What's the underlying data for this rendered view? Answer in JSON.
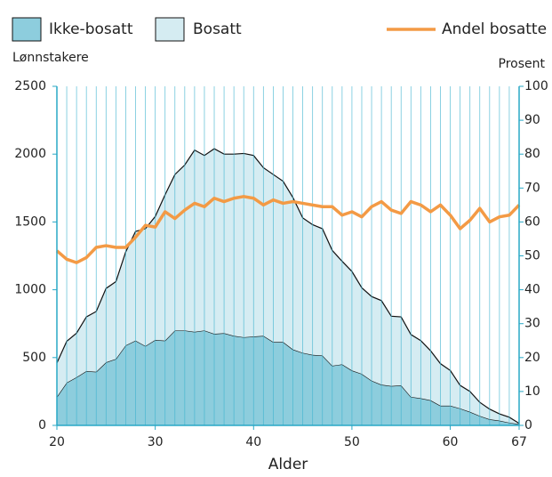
{
  "chart_data": {
    "type": "area",
    "y_label": "Lønnstakere",
    "y2_label": "Prosent",
    "x_label": "Alder",
    "x": [
      20,
      21,
      22,
      23,
      24,
      25,
      26,
      27,
      28,
      29,
      30,
      31,
      32,
      33,
      34,
      35,
      36,
      37,
      38,
      39,
      40,
      41,
      42,
      43,
      44,
      45,
      46,
      47,
      48,
      49,
      50,
      51,
      52,
      53,
      54,
      55,
      56,
      57,
      58,
      59,
      60,
      61,
      62,
      63,
      64,
      65,
      66,
      67
    ],
    "xlim": [
      20,
      67
    ],
    "xticks": [
      20,
      30,
      40,
      50,
      60,
      67
    ],
    "ylim": [
      0,
      2500
    ],
    "yticks": [
      0,
      500,
      1000,
      1500,
      2000,
      2500
    ],
    "y2lim": [
      0,
      100
    ],
    "y2ticks": [
      0,
      10,
      20,
      30,
      40,
      50,
      60,
      70,
      80,
      90,
      100
    ],
    "vertical_grid": true,
    "series": [
      {
        "name": "Ikke-bosatt",
        "color": "#8dcddd",
        "stacked": true,
        "values": [
          210,
          315,
          355,
          400,
          395,
          465,
          490,
          590,
          625,
          585,
          630,
          625,
          700,
          700,
          690,
          700,
          675,
          680,
          660,
          650,
          655,
          660,
          615,
          615,
          560,
          535,
          520,
          515,
          440,
          450,
          405,
          380,
          330,
          300,
          290,
          295,
          210,
          200,
          185,
          145,
          145,
          125,
          100,
          70,
          45,
          35,
          20,
          10
        ]
      },
      {
        "name": "Bosatt",
        "color": "#d5ecf2",
        "stacked": true,
        "values": [
          250,
          305,
          325,
          400,
          445,
          545,
          570,
          690,
          805,
          865,
          910,
          1075,
          1150,
          1220,
          1340,
          1290,
          1365,
          1320,
          1340,
          1355,
          1335,
          1240,
          1235,
          1185,
          1120,
          995,
          960,
          935,
          850,
          760,
          730,
          635,
          620,
          620,
          515,
          505,
          460,
          425,
          365,
          310,
          260,
          170,
          150,
          100,
          75,
          50,
          40,
          5
        ]
      },
      {
        "name": "Andel bosatte",
        "color": "#f39a45",
        "axis": "y2",
        "values": [
          51.5,
          49,
          48,
          49.5,
          52.5,
          53,
          52.5,
          52.5,
          55.5,
          59,
          58.5,
          63,
          61,
          63.5,
          65.5,
          64.5,
          67,
          66,
          67,
          67.5,
          67,
          65,
          66.5,
          65.5,
          66,
          65.5,
          65,
          64.5,
          64.5,
          62,
          63,
          61.5,
          64.5,
          66,
          63.5,
          62.5,
          66,
          65,
          63,
          65,
          62,
          58,
          60.5,
          64,
          60,
          61.5,
          62,
          65
        ]
      }
    ]
  }
}
